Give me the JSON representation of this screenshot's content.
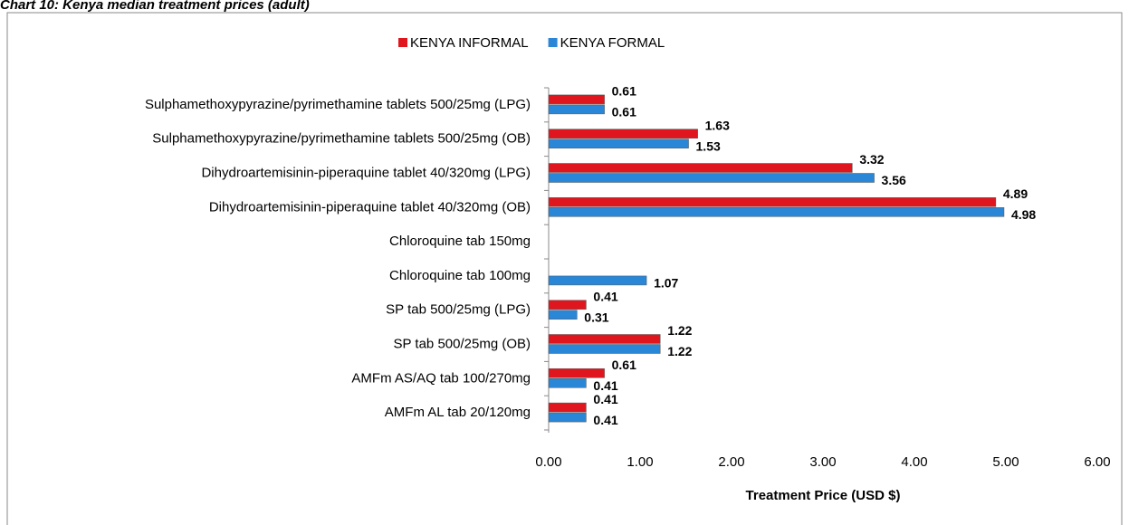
{
  "chart_data": {
    "type": "hbar",
    "title": "Chart 10: Kenya median treatment prices (adult)",
    "xlabel": "Treatment Price (USD $)",
    "categories": [
      "Sulphamethoxypyrazine/pyrimethamine tablets 500/25mg (LPG)",
      "Sulphamethoxypyrazine/pyrimethamine tablets 500/25mg (OB)",
      "Dihydroartemisinin-piperaquine tablet 40/320mg (LPG)",
      "Dihydroartemisinin-piperaquine tablet 40/320mg (OB)",
      "Chloroquine tab 150mg",
      "Chloroquine tab 100mg",
      "SP tab 500/25mg (LPG)",
      "SP tab 500/25mg (OB)",
      "AMFm AS/AQ tab 100/270mg",
      "AMFm AL tab 20/120mg"
    ],
    "series": [
      {
        "name": "KENYA INFORMAL",
        "color": "#e0161e",
        "values": [
          0.61,
          1.63,
          3.32,
          4.89,
          null,
          null,
          0.41,
          1.22,
          0.61,
          0.41
        ]
      },
      {
        "name": "KENYA FORMAL",
        "color": "#2a86d6",
        "values": [
          0.61,
          1.53,
          3.56,
          4.98,
          null,
          1.07,
          0.31,
          1.22,
          0.41,
          0.41
        ]
      }
    ],
    "xlim": [
      0,
      6
    ],
    "xticks": [
      {
        "value": 0,
        "label": "0.00"
      },
      {
        "value": 1,
        "label": "1.00"
      },
      {
        "value": 2,
        "label": "2.00"
      },
      {
        "value": 3,
        "label": "3.00"
      },
      {
        "value": 4,
        "label": "4.00"
      },
      {
        "value": 5,
        "label": "5.00"
      },
      {
        "value": 6,
        "label": "6.00"
      }
    ],
    "legend": "top"
  }
}
